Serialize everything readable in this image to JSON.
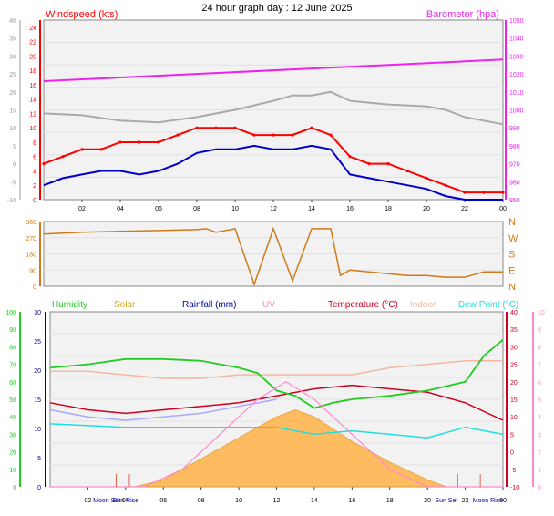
{
  "title": "24 hour graph day : 12 June 2025",
  "colors": {
    "windspeed": "#ff0000",
    "gust": "#0000cc",
    "barometer": "#ee22ee",
    "baro_line": "#aaaaaa",
    "direction": "#d07a1a",
    "humidity": "#22cc22",
    "solar": "#ffb347",
    "rainfall": "#000099",
    "uv": "#ff88cc",
    "temperature": "#cc0022",
    "indoor": "#f4b8a0",
    "dewpoint": "#22dddd",
    "chill": "#aaaaff"
  },
  "chart_data": [
    {
      "type": "line",
      "name": "wind-barometer",
      "left_axis_label": "Windspeed (kts)",
      "right_axis_label": "Barometer (hpa)",
      "outer_left_ticks": [
        "-10",
        "-5",
        "0",
        "5",
        "10",
        "15",
        "20",
        "25",
        "30",
        "35",
        "40"
      ],
      "left_ticks": [
        "0",
        "2",
        "4",
        "6",
        "8",
        "10",
        "12",
        "14",
        "16",
        "18",
        "20",
        "22",
        "24"
      ],
      "right_ticks": [
        "950",
        "960",
        "970",
        "980",
        "990",
        "1000",
        "1010",
        "1020",
        "1030",
        "1040",
        "1050"
      ],
      "x_ticks": [
        "02",
        "04",
        "06",
        "08",
        "10",
        "12",
        "14",
        "16",
        "18",
        "20",
        "22",
        "00"
      ],
      "xlim": [
        0,
        24
      ],
      "left_ylim": [
        0,
        25
      ],
      "right_ylim": [
        950,
        1050
      ],
      "series": [
        {
          "key": "wind",
          "x": [
            0,
            1,
            2,
            3,
            4,
            5,
            6,
            7,
            8,
            9,
            10,
            11,
            12,
            13,
            14,
            15,
            16,
            17,
            18,
            19,
            20,
            21,
            22,
            23,
            24
          ],
          "y": [
            5,
            6,
            7,
            7,
            8,
            8,
            8,
            9,
            10,
            10,
            10,
            9,
            9,
            9,
            10,
            9,
            6,
            5,
            5,
            4,
            3,
            2,
            1,
            1,
            1
          ]
        },
        {
          "key": "gust",
          "x": [
            0,
            1,
            2,
            3,
            4,
            5,
            6,
            7,
            8,
            9,
            10,
            11,
            12,
            13,
            14,
            15,
            16,
            17,
            18,
            19,
            20,
            21,
            22,
            23,
            24
          ],
          "y": [
            2,
            3,
            3.5,
            4,
            4,
            3.5,
            4,
            5,
            6.5,
            7,
            7,
            7.5,
            7,
            7,
            7.5,
            7,
            3.5,
            3,
            2.5,
            2,
            1.5,
            0.5,
            0,
            0,
            0
          ]
        },
        {
          "key": "barometer",
          "x": [
            0,
            24
          ],
          "y": [
            1016,
            1028
          ]
        },
        {
          "key": "baro_secondary",
          "x": [
            0,
            2,
            4,
            6,
            8,
            10,
            12,
            13,
            14,
            15,
            16,
            18,
            20,
            21,
            22,
            23,
            24
          ],
          "y": [
            998,
            997,
            994,
            993,
            996,
            1000,
            1005,
            1008,
            1008,
            1010,
            1005,
            1003,
            1002,
            1000,
            996,
            994,
            992
          ]
        }
      ]
    },
    {
      "type": "line",
      "name": "wind-direction",
      "left_ticks": [
        "0",
        "90",
        "180",
        "270",
        "360"
      ],
      "right_ticks": [
        "N",
        "E",
        "S",
        "W",
        "N"
      ],
      "xlim": [
        0,
        24
      ],
      "ylim": [
        0,
        360
      ],
      "series": [
        {
          "key": "direction",
          "x": [
            0,
            2,
            4,
            6,
            8,
            8.5,
            9,
            10,
            11,
            12,
            13,
            14,
            15,
            15.5,
            16,
            17,
            18,
            19,
            20,
            21,
            22,
            23,
            24
          ],
          "y": [
            290,
            300,
            305,
            310,
            315,
            320,
            300,
            320,
            10,
            320,
            30,
            320,
            320,
            60,
            90,
            80,
            70,
            60,
            60,
            50,
            50,
            80,
            80
          ]
        }
      ]
    },
    {
      "type": "line",
      "name": "multi-sensor",
      "legend": [
        "Humidity",
        "Solar",
        "Rainfall (mm)",
        "UV",
        "Temperature (°C)",
        "Indoor",
        "Dew Point (°C)"
      ],
      "humidity_ticks": [
        "0",
        "10",
        "20",
        "30",
        "40",
        "50",
        "60",
        "70",
        "80",
        "90",
        "100"
      ],
      "rain_ticks": [
        "0",
        "5",
        "10",
        "15",
        "20",
        "25",
        "30"
      ],
      "temp_ticks": [
        "-10",
        "-5",
        "0",
        "5",
        "10",
        "15",
        "20",
        "25",
        "30",
        "35",
        "40"
      ],
      "uv_ticks": [
        "0",
        "1",
        "2",
        "3",
        "4",
        "5",
        "6",
        "7",
        "8",
        "9",
        "10"
      ],
      "x_ticks": [
        "02",
        "04",
        "06",
        "08",
        "10",
        "12",
        "14",
        "16",
        "18",
        "20",
        "22",
        "00"
      ],
      "events": [
        "Moon Set",
        "Sun Rise",
        "Sun Set",
        "Moon Rise"
      ],
      "xlim": [
        0,
        24
      ],
      "ylim": [
        -10,
        40
      ],
      "series": [
        {
          "key": "humidity",
          "x": [
            0,
            2,
            4,
            6,
            8,
            9,
            10,
            11,
            12,
            13,
            14,
            15,
            16,
            18,
            20,
            22,
            23,
            24
          ],
          "y": [
            68,
            70,
            73,
            73,
            72,
            70,
            68,
            65,
            55,
            52,
            45,
            48,
            50,
            52,
            55,
            60,
            75,
            84
          ]
        },
        {
          "key": "temperature",
          "x": [
            0,
            2,
            4,
            6,
            8,
            10,
            12,
            14,
            16,
            18,
            20,
            22,
            24
          ],
          "y": [
            14,
            12,
            11,
            12,
            13,
            14,
            16,
            18,
            19,
            18,
            17,
            14,
            9
          ]
        },
        {
          "key": "dewpoint",
          "x": [
            0,
            4,
            8,
            12,
            14,
            16,
            18,
            20,
            22,
            24
          ],
          "y": [
            8,
            7,
            7,
            7,
            5,
            6,
            5,
            4,
            7,
            5
          ]
        },
        {
          "key": "indoor",
          "x": [
            0,
            2,
            4,
            6,
            8,
            10,
            12,
            14,
            16,
            18,
            20,
            22,
            24
          ],
          "y": [
            23,
            23,
            22,
            21,
            21,
            22,
            22,
            22,
            22,
            24,
            25,
            26,
            26
          ]
        },
        {
          "key": "solar",
          "x": [
            0,
            4.5,
            6,
            8,
            10,
            12,
            13,
            14,
            16,
            18,
            20,
            21,
            24
          ],
          "y": [
            -10,
            -10,
            -8,
            -2,
            4,
            10,
            12,
            10,
            3,
            -3,
            -8,
            -10,
            -10
          ]
        },
        {
          "key": "uv",
          "x": [
            0,
            5,
            7,
            9,
            11,
            12.5,
            14,
            16,
            18,
            20,
            24
          ],
          "y": [
            0,
            0,
            1,
            3,
            5,
            6,
            5,
            3,
            1,
            0,
            0
          ]
        },
        {
          "key": "chill",
          "x": [
            0,
            2,
            4,
            6,
            8,
            10,
            12
          ],
          "y": [
            12,
            10,
            9,
            10,
            11,
            13,
            15
          ]
        }
      ]
    }
  ]
}
